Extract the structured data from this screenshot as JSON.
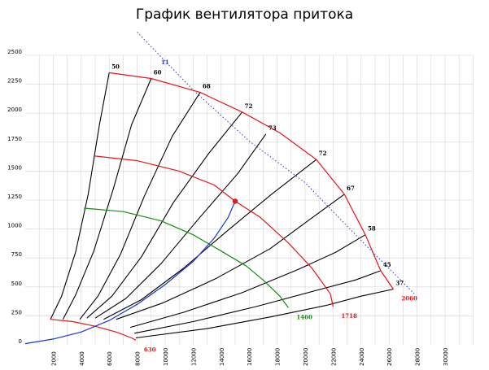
{
  "chart_data": {
    "type": "line",
    "title": "График вентилятора притока",
    "xlabel": "",
    "ylabel": "",
    "xlim": [
      0,
      32000
    ],
    "ylim": [
      0,
      2500
    ],
    "grid": true,
    "x_ticks": [
      "2000",
      "4000",
      "6000",
      "8000",
      "10000",
      "12000",
      "14000",
      "16000",
      "18000",
      "20000",
      "22000",
      "24000",
      "26000",
      "28000",
      "30000"
    ],
    "y_ticks": [
      "0",
      "250",
      "500",
      "750",
      "1000",
      "1250",
      "1500",
      "1750",
      "2000",
      "2250",
      "2500"
    ],
    "colors": {
      "red": "#e8141a",
      "green": "#138c13",
      "blue": "#1f32d6",
      "black": "#000000",
      "dotted": "#2f3bb8",
      "grid": "#d4d4d4"
    },
    "speed_curves": [
      {
        "label": "2060",
        "color": "#e8141a",
        "points": [
          [
            6000,
            2350
          ],
          [
            9000,
            2300
          ],
          [
            12500,
            2180
          ],
          [
            15500,
            2010
          ],
          [
            18200,
            1830
          ],
          [
            20800,
            1600
          ],
          [
            22800,
            1300
          ],
          [
            24300,
            950
          ],
          [
            25400,
            640
          ],
          [
            26300,
            480
          ]
        ]
      },
      {
        "label": "1718",
        "color": "#e8141a",
        "points": [
          [
            5000,
            1630
          ],
          [
            8000,
            1590
          ],
          [
            11000,
            1500
          ],
          [
            13500,
            1380
          ],
          [
            15000,
            1240
          ],
          [
            16800,
            1100
          ],
          [
            18800,
            880
          ],
          [
            20500,
            660
          ],
          [
            21800,
            440
          ],
          [
            22000,
            330
          ]
        ]
      },
      {
        "label": "1460",
        "color": "#138c13",
        "points": [
          [
            4200,
            1180
          ],
          [
            7000,
            1150
          ],
          [
            9700,
            1070
          ],
          [
            12000,
            950
          ],
          [
            14000,
            810
          ],
          [
            15800,
            680
          ],
          [
            17000,
            560
          ],
          [
            18200,
            420
          ],
          [
            18800,
            320
          ]
        ]
      },
      {
        "label": "630",
        "color": "#e8141a",
        "points": [
          [
            1800,
            220
          ],
          [
            3400,
            200
          ],
          [
            5000,
            160
          ],
          [
            6500,
            110
          ],
          [
            7600,
            60
          ],
          [
            7900,
            40
          ]
        ]
      }
    ],
    "system_curve": {
      "label": "",
      "color": "#1f32d6",
      "points": [
        [
          0,
          10
        ],
        [
          2000,
          50
        ],
        [
          4000,
          110
        ],
        [
          6000,
          210
        ],
        [
          8000,
          350
        ],
        [
          10000,
          520
        ],
        [
          12000,
          720
        ],
        [
          13500,
          920
        ],
        [
          14500,
          1100
        ],
        [
          15000,
          1240
        ]
      ]
    },
    "operating_point": {
      "x": 15000,
      "y": 1240
    },
    "efficiency_lines": [
      {
        "label": "50",
        "points": [
          [
            1800,
            220
          ],
          [
            2600,
            420
          ],
          [
            3600,
            800
          ],
          [
            4500,
            1300
          ],
          [
            5300,
            1900
          ],
          [
            6000,
            2350
          ]
        ]
      },
      {
        "label": "60",
        "points": [
          [
            2700,
            220
          ],
          [
            3600,
            430
          ],
          [
            4900,
            810
          ],
          [
            6300,
            1350
          ],
          [
            7600,
            1900
          ],
          [
            9000,
            2300
          ]
        ]
      },
      {
        "label": "68",
        "points": [
          [
            3900,
            220
          ],
          [
            5200,
            420
          ],
          [
            6800,
            780
          ],
          [
            8500,
            1280
          ],
          [
            10500,
            1800
          ],
          [
            12500,
            2180
          ]
        ]
      },
      {
        "label": "72",
        "points": [
          [
            4400,
            230
          ],
          [
            6200,
            420
          ],
          [
            8300,
            760
          ],
          [
            10600,
            1230
          ],
          [
            13100,
            1650
          ],
          [
            15500,
            2010
          ]
        ]
      },
      {
        "label": "73",
        "points": [
          [
            5000,
            230
          ],
          [
            7200,
            400
          ],
          [
            9700,
            700
          ],
          [
            12400,
            1090
          ],
          [
            15200,
            1480
          ],
          [
            17200,
            1820
          ]
        ]
      },
      {
        "label": "72",
        "points": [
          [
            5600,
            220
          ],
          [
            8300,
            390
          ],
          [
            11300,
            660
          ],
          [
            14400,
            980
          ],
          [
            17600,
            1300
          ],
          [
            20800,
            1600
          ]
        ]
      },
      {
        "label": "67",
        "points": [
          [
            6500,
            220
          ],
          [
            9800,
            360
          ],
          [
            13600,
            570
          ],
          [
            17500,
            830
          ],
          [
            20200,
            1070
          ],
          [
            22800,
            1300
          ]
        ]
      },
      {
        "label": "58",
        "points": [
          [
            7500,
            150
          ],
          [
            11300,
            280
          ],
          [
            15500,
            450
          ],
          [
            19500,
            650
          ],
          [
            22200,
            800
          ],
          [
            24300,
            950
          ]
        ]
      },
      {
        "label": "45",
        "points": [
          [
            7800,
            100
          ],
          [
            12000,
            200
          ],
          [
            16500,
            330
          ],
          [
            20500,
            460
          ],
          [
            23600,
            560
          ],
          [
            25400,
            640
          ]
        ]
      },
      {
        "label": "37",
        "points": [
          [
            7900,
            60
          ],
          [
            13000,
            140
          ],
          [
            17500,
            240
          ],
          [
            21500,
            340
          ],
          [
            24000,
            420
          ],
          [
            26300,
            480
          ]
        ]
      }
    ],
    "boundary_line": {
      "label": "11",
      "color": "#2f3bb8",
      "points": [
        [
          8000,
          2700
        ],
        [
          12000,
          2200
        ],
        [
          16000,
          1760
        ],
        [
          20000,
          1400
        ],
        [
          24000,
          900
        ],
        [
          27800,
          440
        ]
      ]
    }
  }
}
